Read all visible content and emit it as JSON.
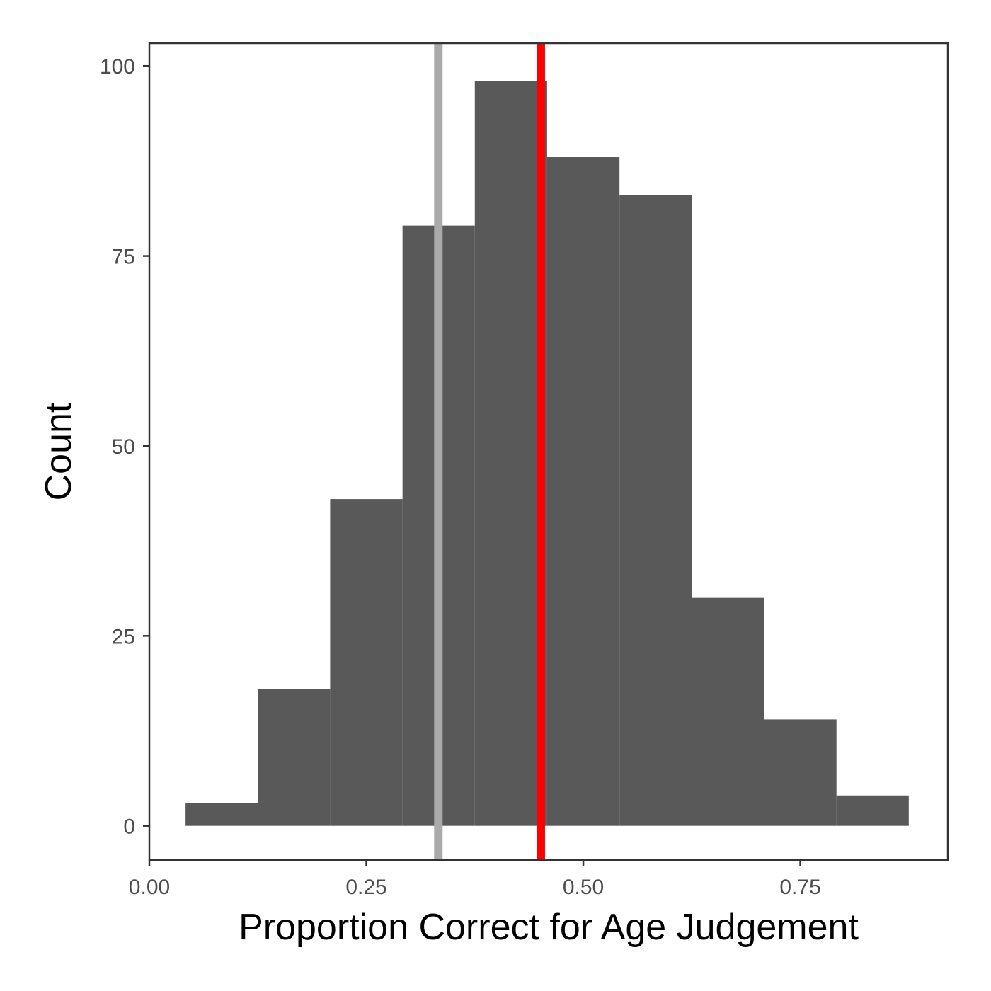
{
  "chart_data": {
    "type": "bar",
    "subtype": "histogram",
    "xlabel": "Proportion Correct for Age Judgement",
    "ylabel": "Count",
    "xlim": [
      0.0,
      0.92
    ],
    "ylim": [
      -4.5,
      103
    ],
    "x_ticks": [
      {
        "value": 0.0,
        "label": "0.00"
      },
      {
        "value": 0.25,
        "label": "0.25"
      },
      {
        "value": 0.5,
        "label": "0.50"
      },
      {
        "value": 0.75,
        "label": "0.75"
      }
    ],
    "y_ticks": [
      {
        "value": 0,
        "label": "0"
      },
      {
        "value": 25,
        "label": "25"
      },
      {
        "value": 50,
        "label": "50"
      },
      {
        "value": 75,
        "label": "75"
      },
      {
        "value": 100,
        "label": "100"
      }
    ],
    "bins": [
      {
        "x0": 0.0417,
        "x1": 0.125,
        "count": 3
      },
      {
        "x0": 0.125,
        "x1": 0.2083,
        "count": 18
      },
      {
        "x0": 0.2083,
        "x1": 0.2917,
        "count": 43
      },
      {
        "x0": 0.2917,
        "x1": 0.375,
        "count": 79
      },
      {
        "x0": 0.375,
        "x1": 0.4583,
        "count": 98
      },
      {
        "x0": 0.4583,
        "x1": 0.5417,
        "count": 88
      },
      {
        "x0": 0.5417,
        "x1": 0.625,
        "count": 83
      },
      {
        "x0": 0.625,
        "x1": 0.7083,
        "count": 30
      },
      {
        "x0": 0.7083,
        "x1": 0.7917,
        "count": 14
      },
      {
        "x0": 0.7917,
        "x1": 0.875,
        "count": 4
      }
    ],
    "reference_lines": [
      {
        "x": 0.333,
        "color": "#aaaaaa"
      },
      {
        "x": 0.451,
        "color": "#ff0000"
      }
    ],
    "bar_color": "#595959",
    "grid": false,
    "legend": "none"
  }
}
